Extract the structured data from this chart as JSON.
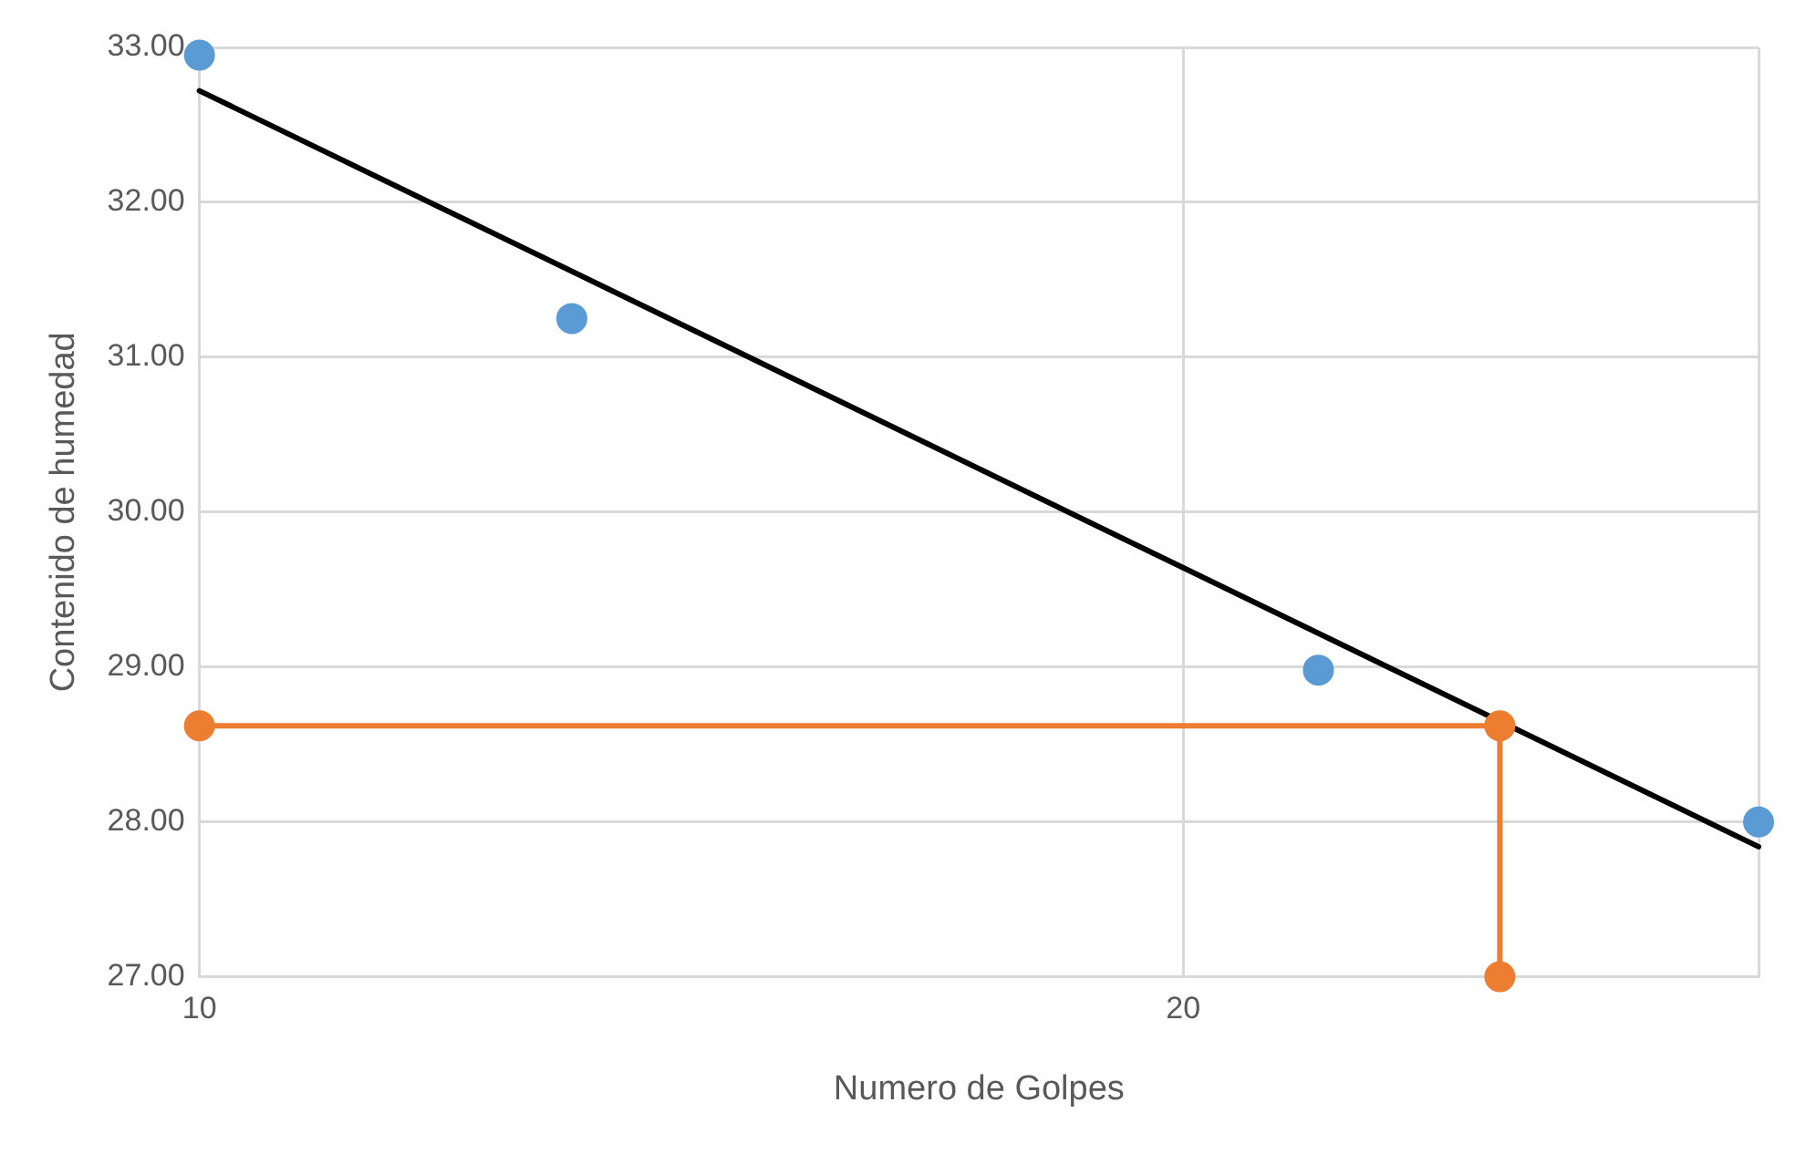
{
  "chart_data": {
    "type": "scatter",
    "xlabel": "Numero de Golpes",
    "ylabel": "Contenido de humedad",
    "log": "x",
    "xlim": [
      10,
      30
    ],
    "xticks": [
      10,
      20,
      {
        "value": 30,
        "label": null
      }
    ],
    "ylim": [
      27,
      33
    ],
    "yticks": [
      {
        "value": 27,
        "label": "27.00"
      },
      {
        "value": 28,
        "label": "28.00"
      },
      {
        "value": 29,
        "label": "29.00"
      },
      {
        "value": 30,
        "label": "30.00"
      },
      {
        "value": 31,
        "label": "31.00"
      },
      {
        "value": 32,
        "label": "32.00"
      },
      {
        "value": 33,
        "label": "33.00"
      }
    ],
    "grid": true,
    "legend": false,
    "marker": "circle",
    "series": [
      {
        "color": "#5b9bd5",
        "x": [
          10,
          13,
          22,
          30
        ],
        "values": [
          32.95,
          31.25,
          28.98,
          28.0
        ]
      },
      {
        "type": "line",
        "color": "#ed7d31",
        "x": [
          10,
          25,
          25
        ],
        "values": [
          28.62,
          28.62,
          27.0
        ]
      },
      {
        "type": "line",
        "color": "#000000",
        "marker": "none",
        "x": [
          10,
          30
        ],
        "values": [
          32.72,
          27.84
        ]
      }
    ]
  }
}
